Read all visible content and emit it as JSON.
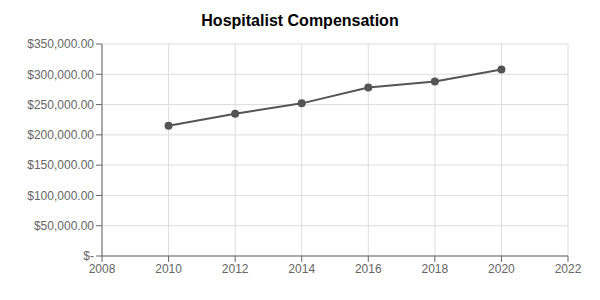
{
  "chart_data": {
    "type": "line",
    "title": "Hospitalist Compensation",
    "x": [
      2010,
      2012,
      2014,
      2016,
      2018,
      2020
    ],
    "values": [
      215000,
      235000,
      252000,
      278000,
      288000,
      308000
    ],
    "color": "#555555",
    "marker": "circle",
    "xlim": [
      2008,
      2022
    ],
    "xticks": [
      2008,
      2010,
      2012,
      2014,
      2016,
      2018,
      2020,
      2022
    ],
    "ylim": [
      0,
      350000
    ],
    "yticks": [
      {
        "value": 0,
        "label": "$-"
      },
      {
        "value": 50000,
        "label": "$50,000.00"
      },
      {
        "value": 100000,
        "label": "$100,000.00"
      },
      {
        "value": 150000,
        "label": "$150,000.00"
      },
      {
        "value": 200000,
        "label": "$200,000.00"
      },
      {
        "value": 250000,
        "label": "$250,000.00"
      },
      {
        "value": 300000,
        "label": "$300,000.00"
      },
      {
        "value": 350000,
        "label": "$350,000.00"
      }
    ],
    "grid": true
  }
}
